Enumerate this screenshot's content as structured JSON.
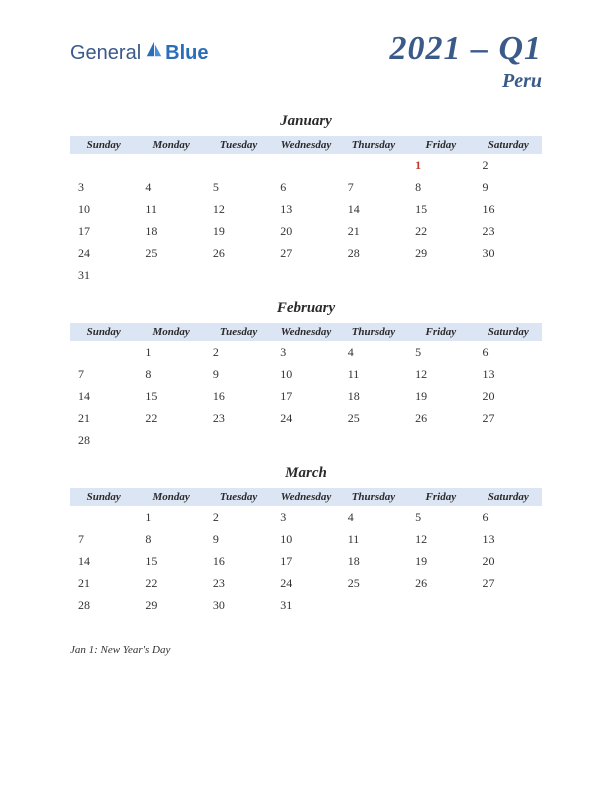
{
  "logo": {
    "general": "General",
    "blue": "Blue"
  },
  "title": {
    "quarter": "2021 – Q1",
    "country": "Peru"
  },
  "colors": {
    "header_bg": "#dbe5f4",
    "text": "#333333",
    "accent": "#3a5a8a",
    "holiday": "#c0392b",
    "background": "#ffffff"
  },
  "day_headers": [
    "Sunday",
    "Monday",
    "Tuesday",
    "Wednesday",
    "Thursday",
    "Friday",
    "Saturday"
  ],
  "months": [
    {
      "name": "January",
      "weeks": [
        [
          "",
          "",
          "",
          "",
          "",
          "1",
          "2"
        ],
        [
          "3",
          "4",
          "5",
          "6",
          "7",
          "8",
          "9"
        ],
        [
          "10",
          "11",
          "12",
          "13",
          "14",
          "15",
          "16"
        ],
        [
          "17",
          "18",
          "19",
          "20",
          "21",
          "22",
          "23"
        ],
        [
          "24",
          "25",
          "26",
          "27",
          "28",
          "29",
          "30"
        ],
        [
          "31",
          "",
          "",
          "",
          "",
          "",
          ""
        ]
      ],
      "holiday_cells": [
        [
          0,
          5
        ]
      ]
    },
    {
      "name": "February",
      "weeks": [
        [
          "",
          "1",
          "2",
          "3",
          "4",
          "5",
          "6"
        ],
        [
          "7",
          "8",
          "9",
          "10",
          "11",
          "12",
          "13"
        ],
        [
          "14",
          "15",
          "16",
          "17",
          "18",
          "19",
          "20"
        ],
        [
          "21",
          "22",
          "23",
          "24",
          "25",
          "26",
          "27"
        ],
        [
          "28",
          "",
          "",
          "",
          "",
          "",
          ""
        ]
      ],
      "holiday_cells": []
    },
    {
      "name": "March",
      "weeks": [
        [
          "",
          "1",
          "2",
          "3",
          "4",
          "5",
          "6"
        ],
        [
          "7",
          "8",
          "9",
          "10",
          "11",
          "12",
          "13"
        ],
        [
          "14",
          "15",
          "16",
          "17",
          "18",
          "19",
          "20"
        ],
        [
          "21",
          "22",
          "23",
          "24",
          "25",
          "26",
          "27"
        ],
        [
          "28",
          "29",
          "30",
          "31",
          "",
          "",
          ""
        ]
      ],
      "holiday_cells": []
    }
  ],
  "holidays": [
    "Jan 1: New Year's Day"
  ]
}
